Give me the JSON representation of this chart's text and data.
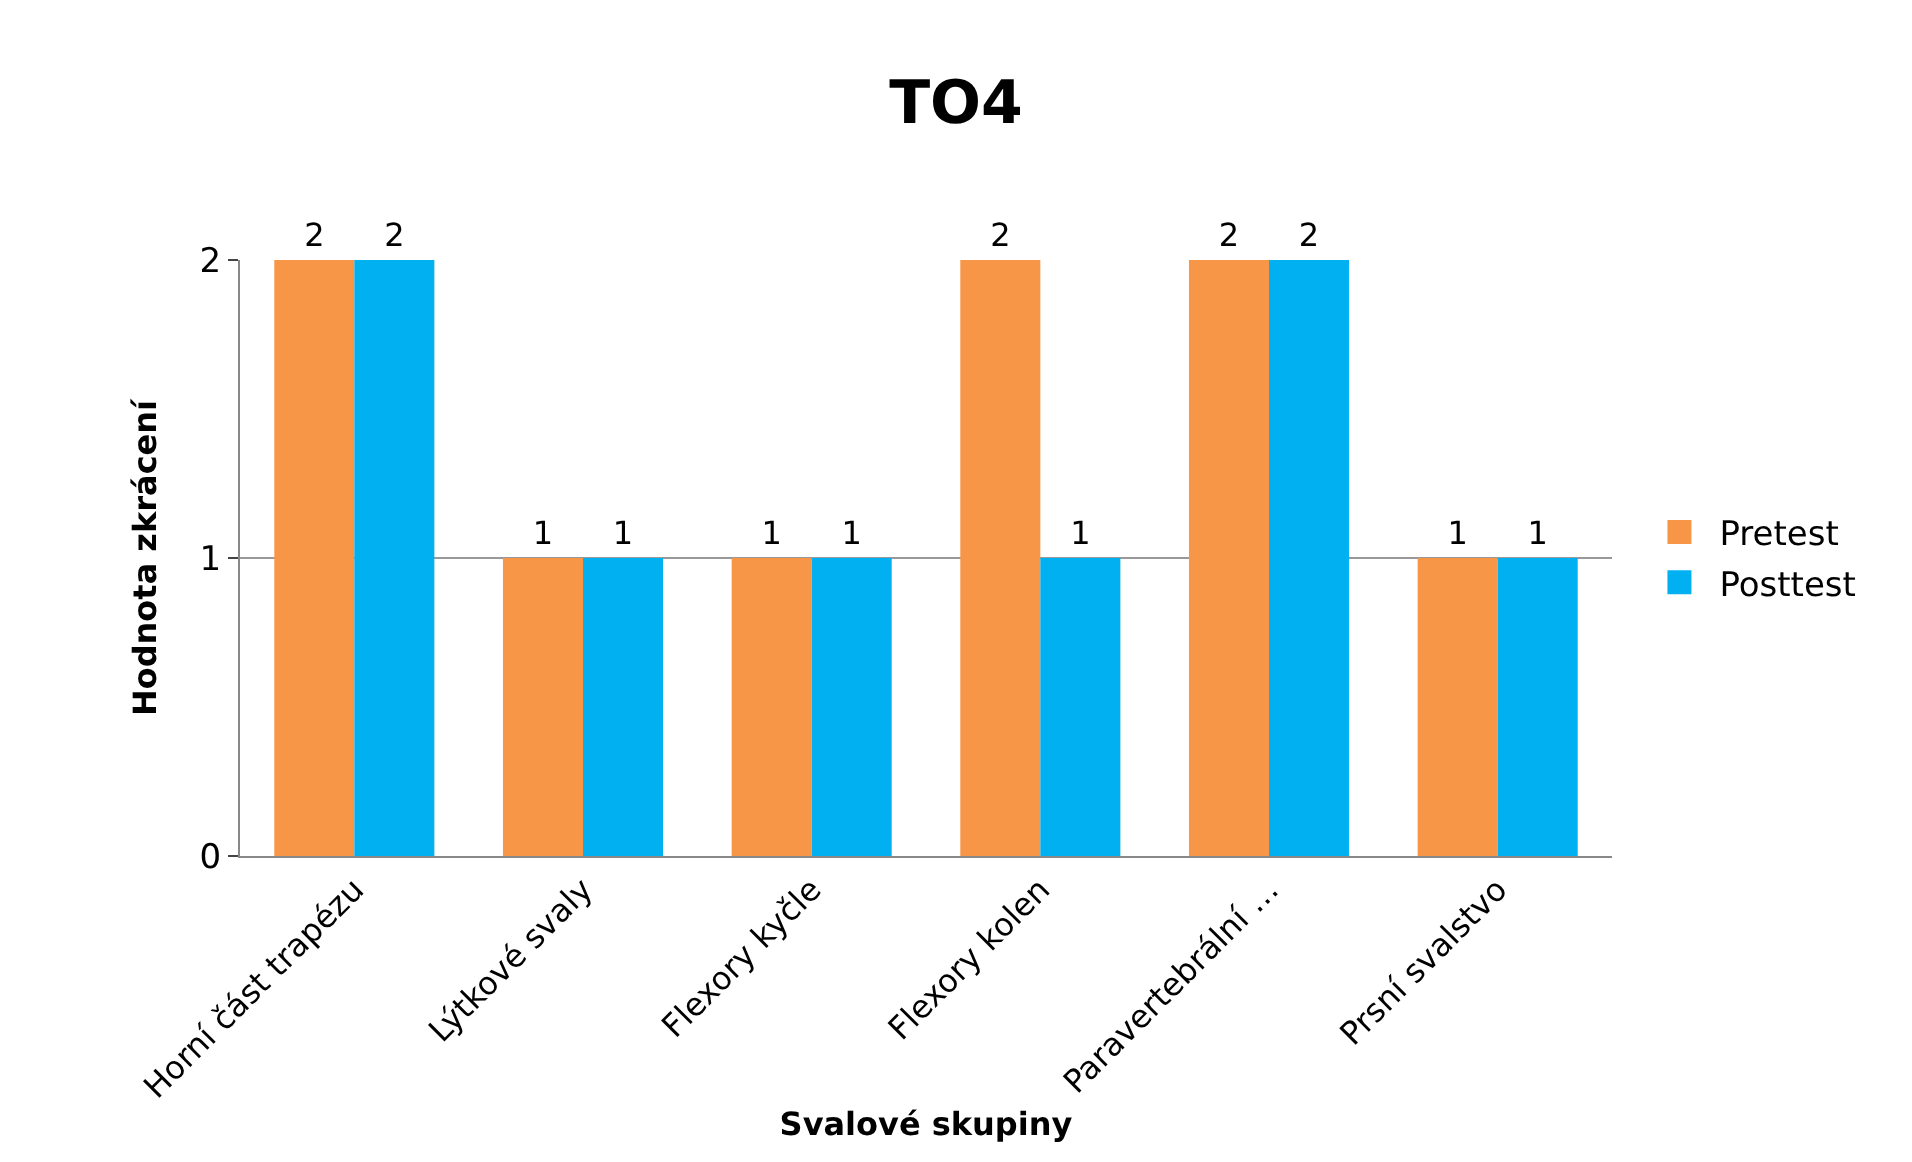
{
  "chart_data": {
    "type": "bar",
    "title": "TO4",
    "xlabel": "Svalové skupiny",
    "ylabel": "Hodnota zkrácení",
    "categories": [
      "Horní část trapézu",
      "Lýtkové svaly",
      "Flexory kyčle",
      "Flexory kolen",
      "Paravertebrální …",
      "Prsní svalstvo"
    ],
    "series": [
      {
        "name": "Pretest",
        "color": "#f79646",
        "values": [
          2,
          1,
          1,
          2,
          2,
          1
        ]
      },
      {
        "name": "Posttest",
        "color": "#00b0f0",
        "values": [
          2,
          1,
          1,
          1,
          2,
          1
        ]
      }
    ],
    "ylim": [
      0,
      2
    ],
    "yticks": [
      0,
      1,
      2
    ],
    "grid": "y",
    "legend": "right",
    "data_labels": true
  }
}
